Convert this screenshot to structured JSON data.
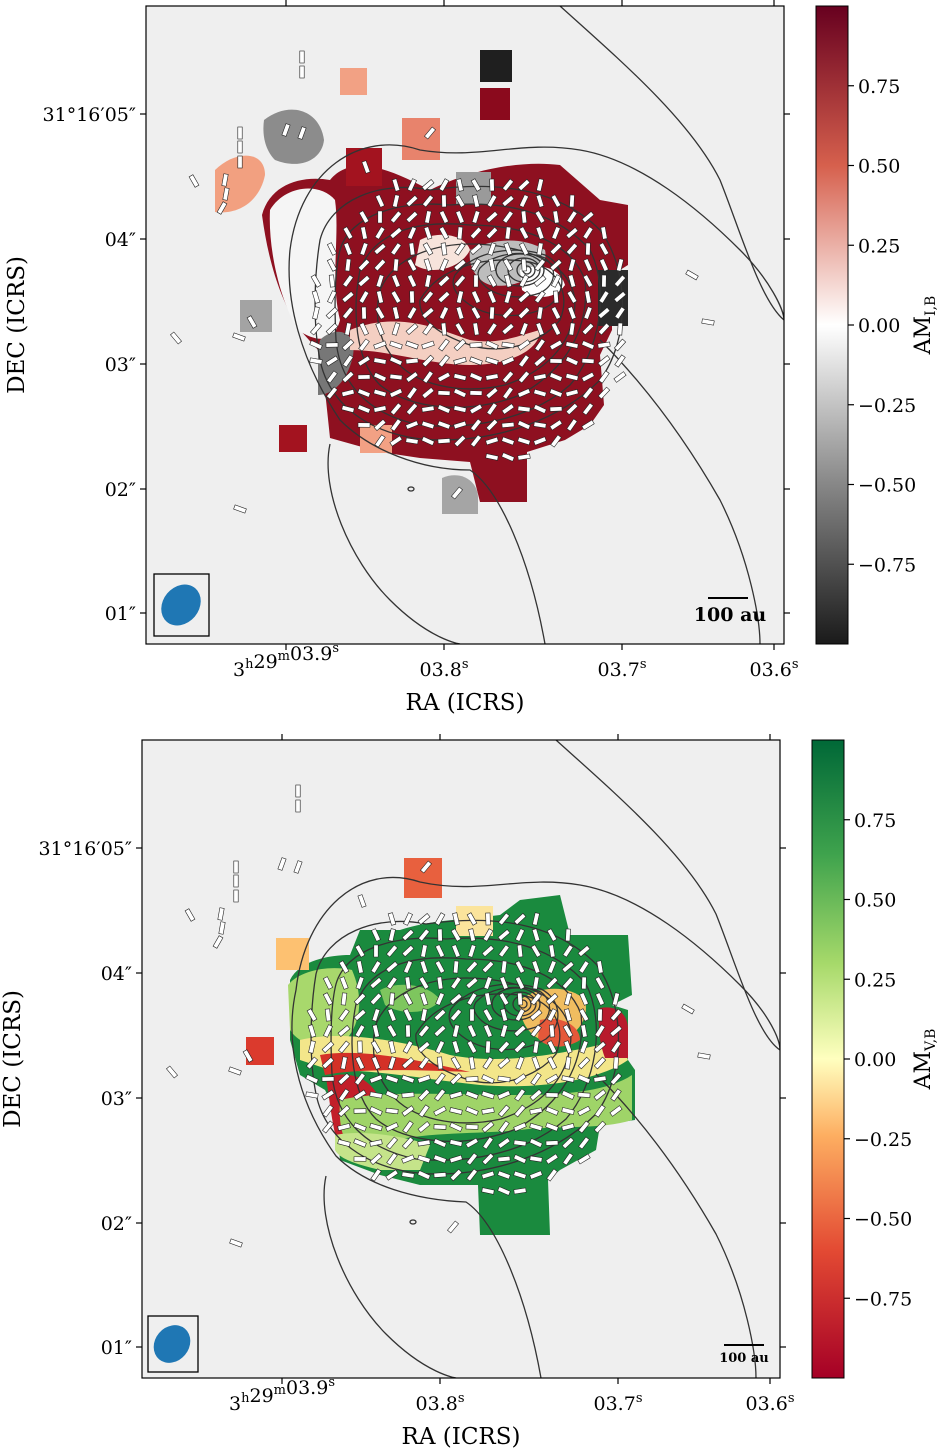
{
  "chart_data": [
    {
      "type": "heatmap",
      "xlabel": "RA (ICRS)",
      "ylabel": "DEC (ICRS)",
      "x_ticks": [
        "3h29m03.9s",
        "03.8s",
        "03.7s",
        "03.6s"
      ],
      "y_ticks": [
        "01″",
        "02″",
        "03″",
        "04″",
        "31°16′05″"
      ],
      "colorbar": {
        "label": "AM",
        "label_sub": "I,B",
        "ticks": [
          "0.75",
          "0.50",
          "0.25",
          "0.00",
          "−0.25",
          "−0.50",
          "−0.75"
        ],
        "range": [
          -1,
          1
        ],
        "colormap": "RdGy",
        "low_color": "#1a1a1a",
        "mid_color": "#ffffff",
        "high_color": "#67001f"
      },
      "scale_bar": "100 au",
      "background": "#efefef"
    },
    {
      "type": "heatmap",
      "xlabel": "RA (ICRS)",
      "ylabel": "DEC (ICRS)",
      "x_ticks": [
        "3h29m03.9s",
        "03.8s",
        "03.7s",
        "03.6s"
      ],
      "y_ticks": [
        "01″",
        "02″",
        "03″",
        "04″",
        "31°16′05″"
      ],
      "colorbar": {
        "label": "AM",
        "label_sub": "V,B",
        "ticks": [
          "0.75",
          "0.50",
          "0.25",
          "0.00",
          "−0.25",
          "−0.50",
          "−0.75"
        ],
        "range": [
          -1,
          1
        ],
        "colormap": "RdYlGn",
        "low_color": "#a50026",
        "mid_color": "#ffffbf",
        "high_color": "#006837"
      },
      "scale_bar": "100 au",
      "background": "#efefef"
    }
  ]
}
